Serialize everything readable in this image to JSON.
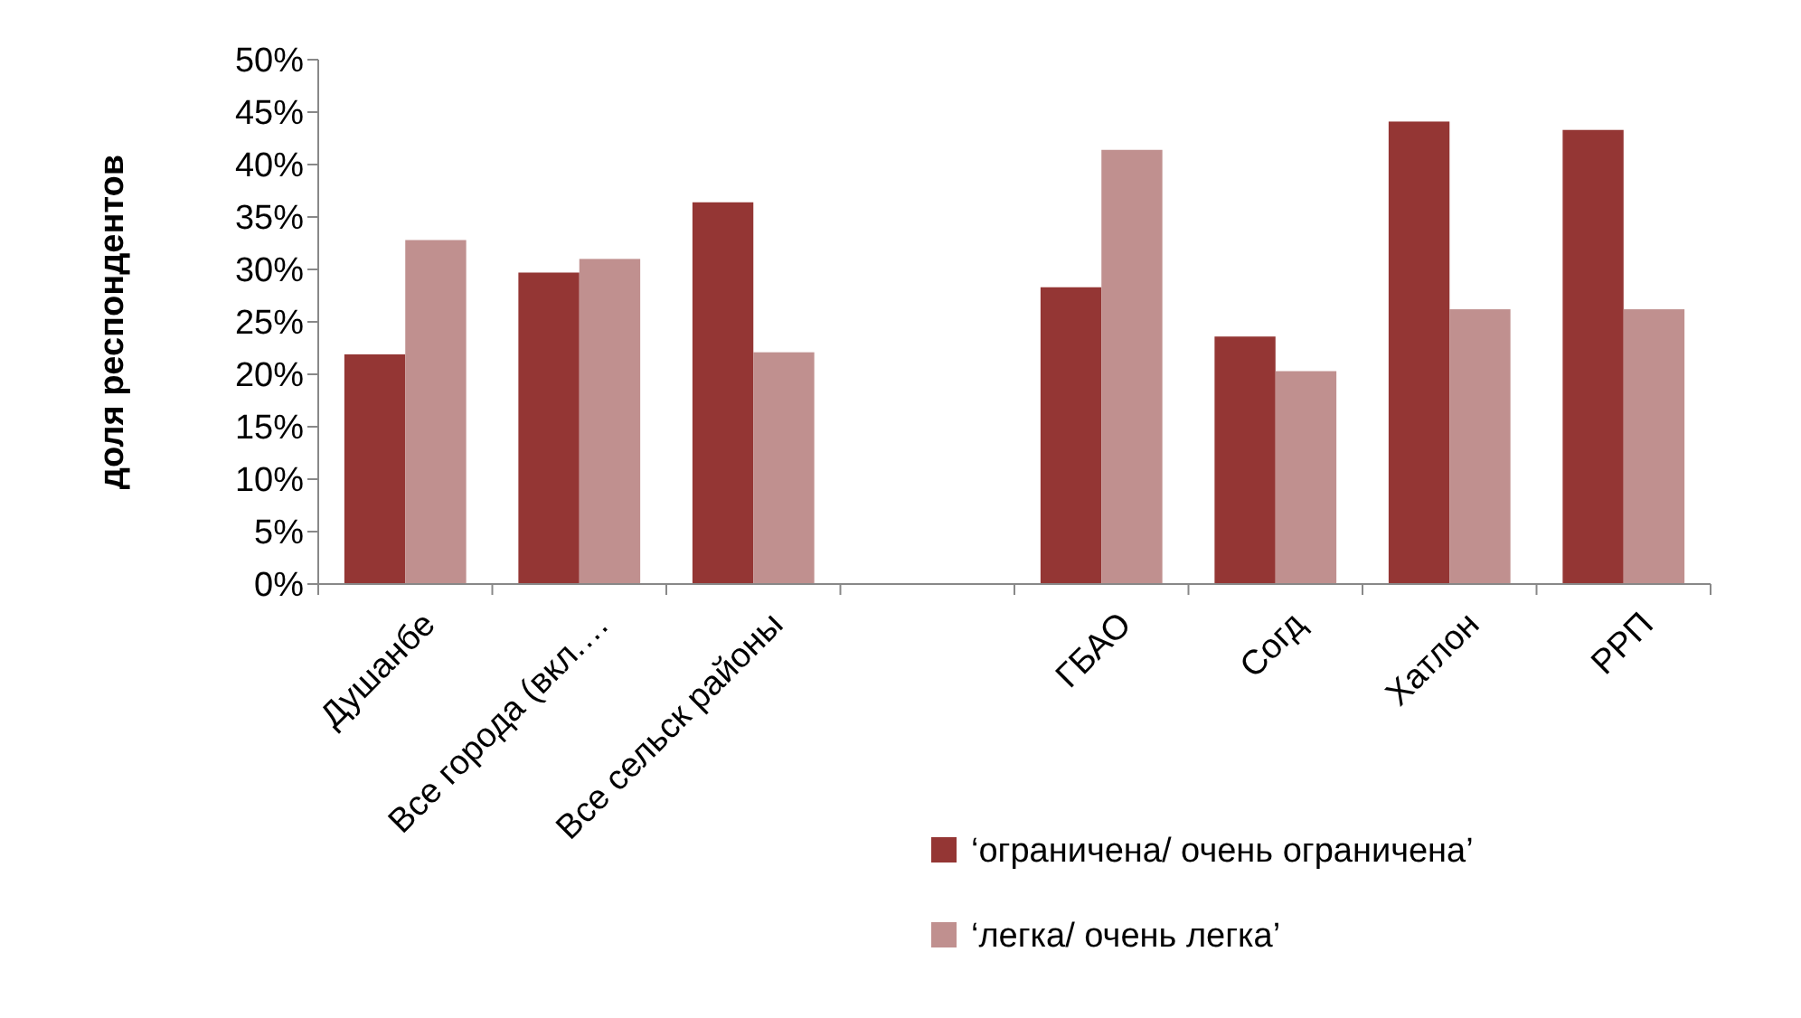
{
  "chart_data": {
    "type": "bar",
    "ylabel": "доля респондентов",
    "categories": [
      "Душанбе",
      "Все города (вкл.…",
      "Все сельск районы",
      null,
      "ГБАО",
      "Согд",
      "Хатлон",
      "РРП"
    ],
    "series": [
      {
        "name": "‘ограничена/ очень ограничена’",
        "color": "#943634",
        "values": [
          21.9,
          29.7,
          36.4,
          null,
          28.3,
          23.6,
          44.1,
          43.3
        ]
      },
      {
        "name": "‘легка/ очень легка’",
        "color": "#c0908f",
        "values": [
          32.8,
          31.0,
          22.1,
          null,
          41.4,
          20.3,
          26.2,
          26.2
        ]
      }
    ],
    "ylim": [
      0,
      50
    ],
    "yticks": [
      {
        "value": 0,
        "label": "0%"
      },
      {
        "value": 5,
        "label": "5%"
      },
      {
        "value": 10,
        "label": "10%"
      },
      {
        "value": 15,
        "label": "15%"
      },
      {
        "value": 20,
        "label": "20%"
      },
      {
        "value": 25,
        "label": "25%"
      },
      {
        "value": 30,
        "label": "30%"
      },
      {
        "value": 35,
        "label": "35%"
      },
      {
        "value": 40,
        "label": "40%"
      },
      {
        "value": 45,
        "label": "45%"
      },
      {
        "value": 50,
        "label": "50%"
      }
    ],
    "grid": false,
    "legend": "bottom right"
  }
}
